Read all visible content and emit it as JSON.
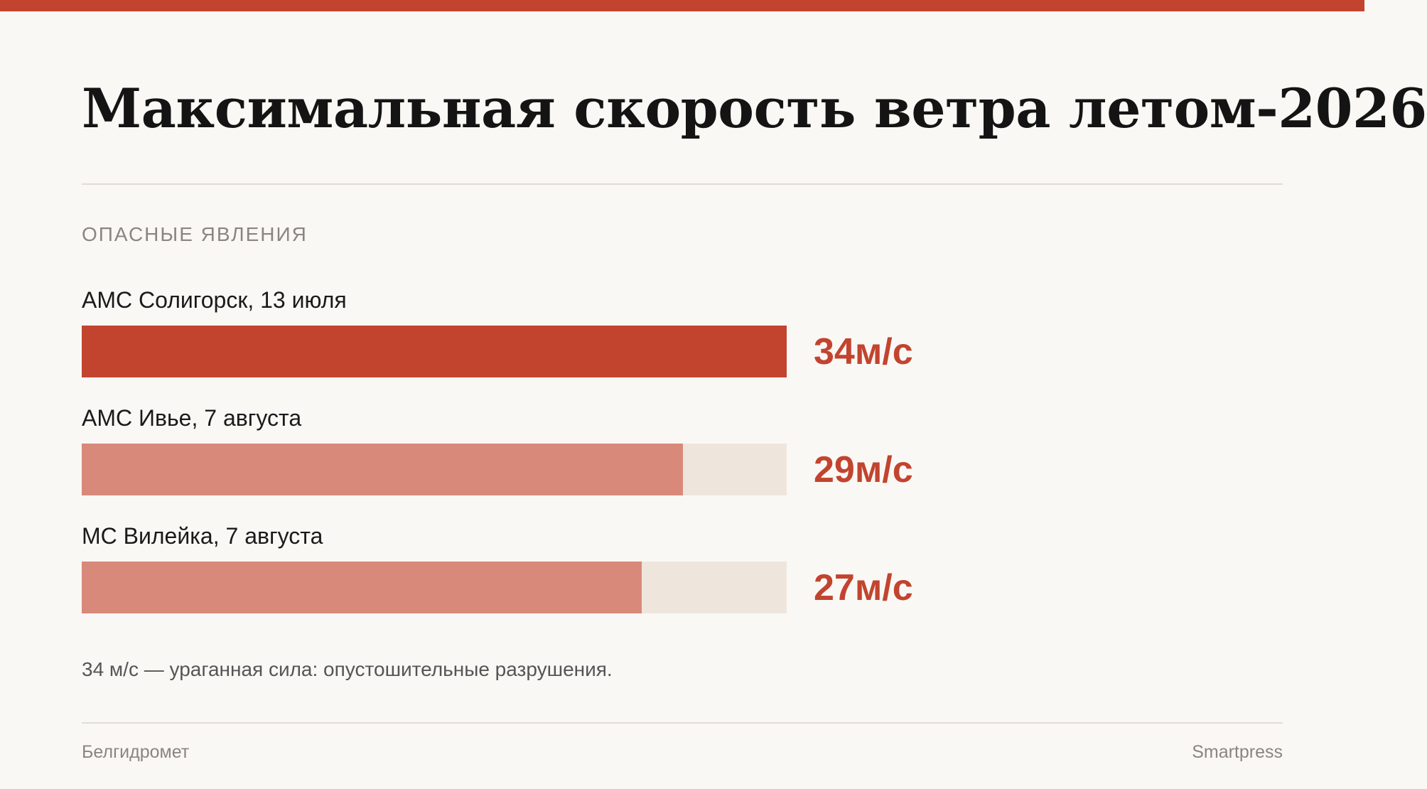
{
  "title": "Максимальная скорость ветра летом-2026",
  "section_label": "ОПАСНЫЕ ЯВЛЕНИЯ",
  "note": "34 м/с — ураганная сила: опустошительные разрушения.",
  "source": "Белгидромет",
  "brand": "Smartpress",
  "colors": {
    "accent": "#c2442f",
    "secondary_bar": "#d9897a",
    "track": "#eee6dd",
    "background": "#faf8f5"
  },
  "chart_data": {
    "type": "bar",
    "orientation": "horizontal",
    "unit": "м/с",
    "xlim": [
      0,
      34
    ],
    "categories": [
      "АМС Солигорск, 13 июля",
      "АМС Ивье, 7 августа",
      "МС Вилейка, 7 августа"
    ],
    "values": [
      34,
      29,
      27
    ],
    "value_labels": [
      "34м/с",
      "29м/с",
      "27м/с"
    ],
    "highlight_index": 0
  }
}
